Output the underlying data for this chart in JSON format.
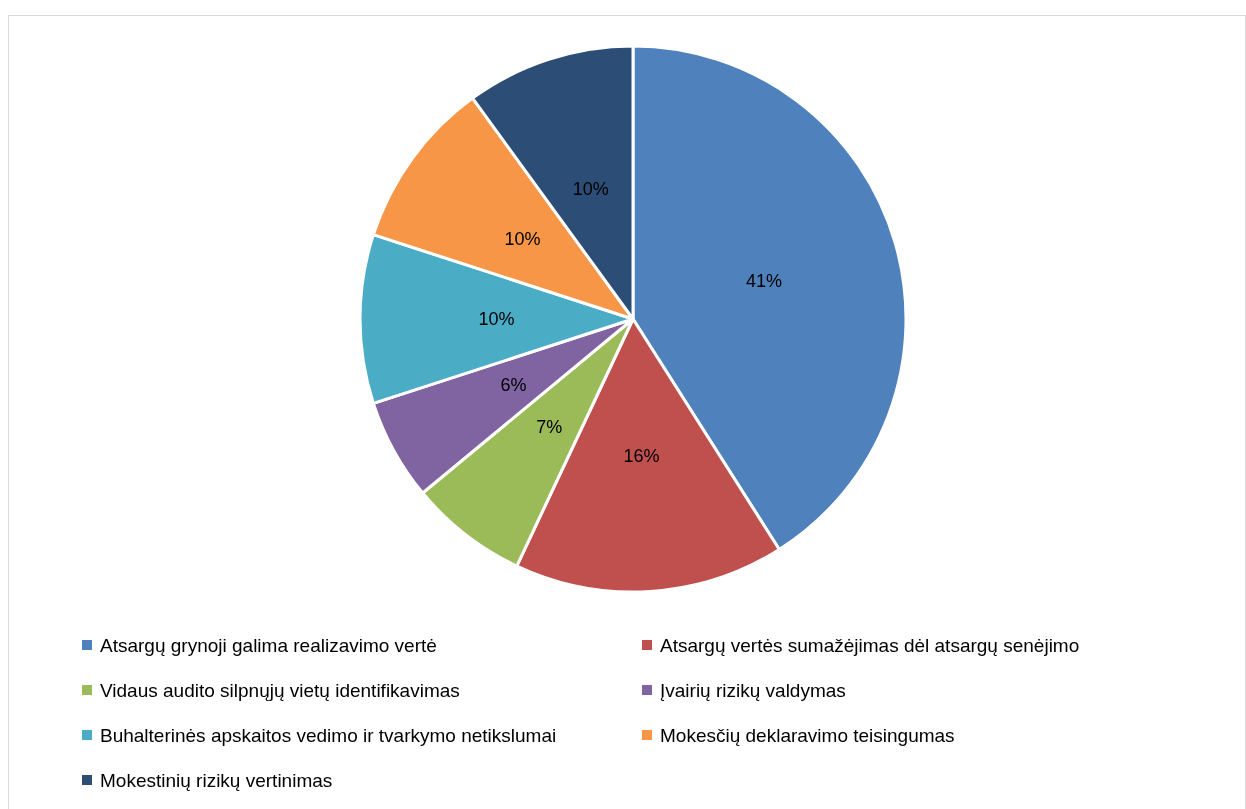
{
  "chart_data": {
    "type": "pie",
    "categories": [
      "Atsargų grynoji galima realizavimo vertė",
      "Atsargų vertės sumažėjimas dėl atsargų senėjimo",
      "Vidaus audito silpnųjų vietų identifikavimas",
      "Įvairių rizikų valdymas",
      "Buhalterinės apskaitos vedimo ir tvarkymo netikslumai",
      "Mokesčių deklaravimo teisingumas",
      "Mokestinių rizikų vertinimas"
    ],
    "values": [
      41,
      16,
      7,
      6,
      10,
      10,
      10
    ],
    "value_labels": [
      "41%",
      "16%",
      "7%",
      "6%",
      "10%",
      "10%",
      "10%"
    ],
    "colors": [
      "#4f81bd",
      "#c0504d",
      "#9bbb59",
      "#8064a2",
      "#4bacc6",
      "#f79646",
      "#2c4d75"
    ],
    "legend": "bottom"
  }
}
